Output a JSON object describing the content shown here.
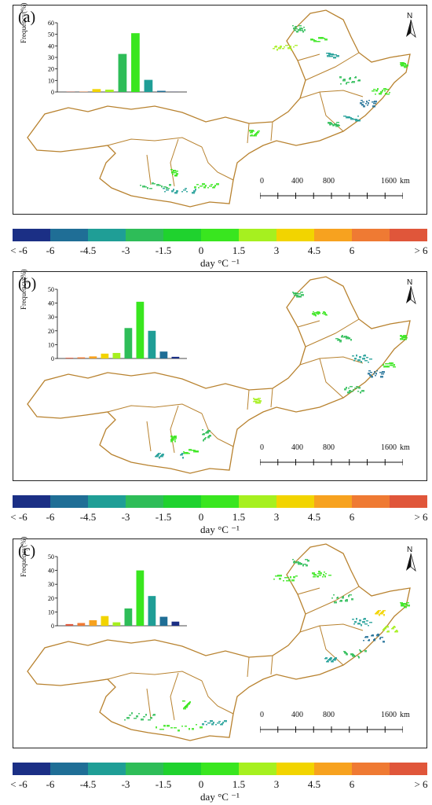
{
  "panels": [
    {
      "label": "(a)",
      "histogram": {
        "ytitle": "Frequency(%)",
        "yticks": [
          "0",
          "10",
          "20",
          "30",
          "40",
          "50",
          "60"
        ],
        "ymax": 60,
        "values": [
          0.2,
          0.3,
          2.5,
          2.0,
          33,
          51,
          10.5,
          1.0,
          0.1
        ]
      },
      "north_label": "N",
      "scale": {
        "labels": [
          "0",
          "400",
          "800",
          "1600"
        ],
        "unit": "km"
      }
    },
    {
      "label": "(b)",
      "histogram": {
        "ytitle": "Frequency(%)",
        "yticks": [
          "0",
          "10",
          "20",
          "30",
          "40",
          "50"
        ],
        "ymax": 50,
        "values": [
          0.5,
          0.8,
          1.5,
          3.5,
          4.0,
          22,
          41,
          20,
          5,
          1.2
        ]
      },
      "north_label": "N",
      "scale": {
        "labels": [
          "0",
          "400",
          "800",
          "1600"
        ],
        "unit": "km"
      }
    },
    {
      "label": "(c)",
      "histogram": {
        "ytitle": "Frequency(%)",
        "yticks": [
          "0",
          "10",
          "20",
          "30",
          "40",
          "50"
        ],
        "ymax": 50,
        "values": [
          1.2,
          2.0,
          4.0,
          7.0,
          2.5,
          12.5,
          40,
          21.5,
          6.5,
          3.0
        ]
      },
      "north_label": "N",
      "scale": {
        "labels": [
          "0",
          "400",
          "800",
          "1600"
        ],
        "unit": "km"
      }
    }
  ],
  "legend": {
    "colors": [
      "#1b2f85",
      "#1f6e96",
      "#1f9e96",
      "#2ebd58",
      "#1fd22e",
      "#39e61f",
      "#a6f01f",
      "#f2d400",
      "#f7a21f",
      "#ef7a33",
      "#e0563a"
    ],
    "ticks": [
      "< -6",
      "-6",
      "-4.5",
      "-3",
      "-1.5",
      "0",
      "1.5",
      "3",
      "4.5",
      "6",
      "> 6"
    ],
    "unit": "day °C ⁻¹"
  },
  "hist_colors_a": [
    "#e0563a",
    "#ef7a33",
    "#f2d400",
    "#a6f01f",
    "#2ebd58",
    "#39e61f",
    "#1f9e96",
    "#1f6e96",
    "#1b2f85"
  ],
  "hist_colors_bc": [
    "#e0563a",
    "#ef7a33",
    "#f7a21f",
    "#f2d400",
    "#a6f01f",
    "#2ebd58",
    "#39e61f",
    "#1f9e96",
    "#1f6e96",
    "#1b2f85"
  ]
}
